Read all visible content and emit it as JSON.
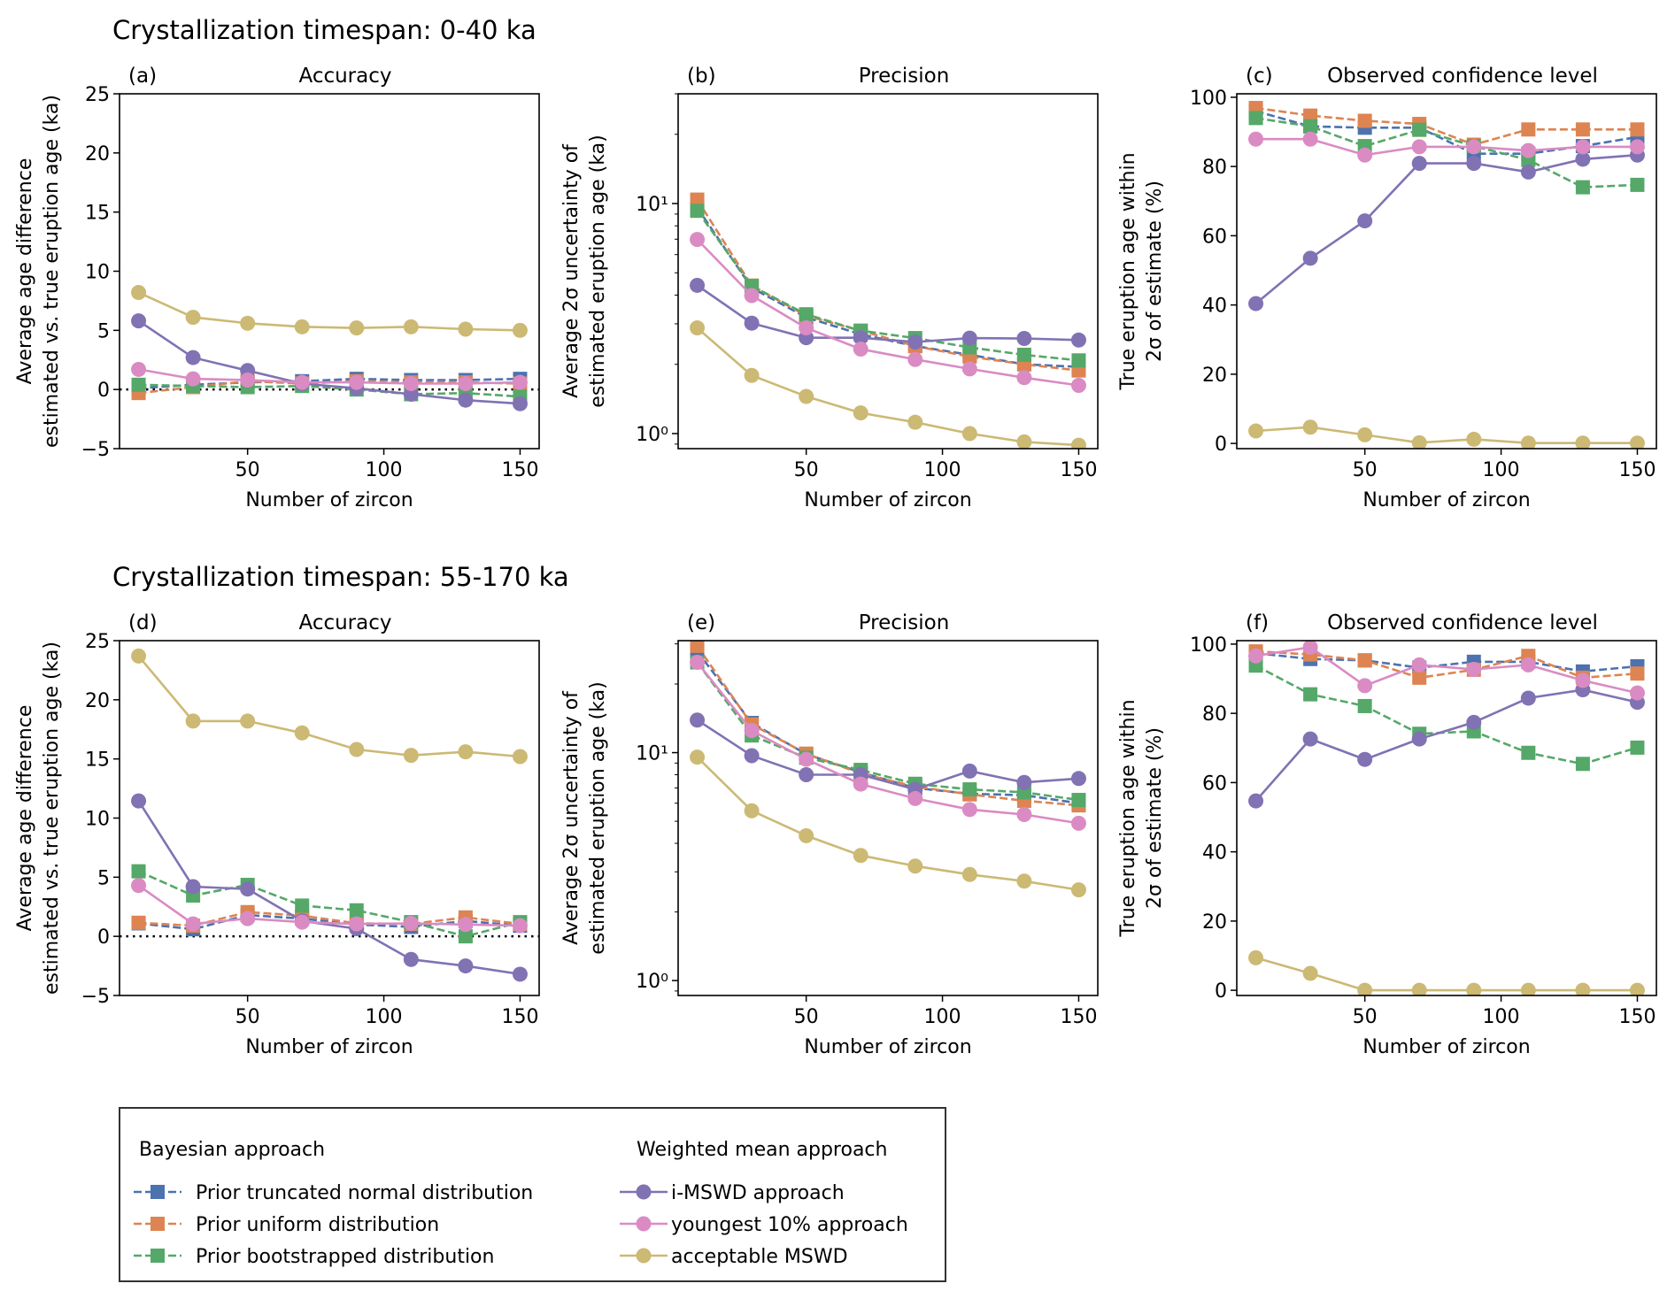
{
  "row_titles": [
    "Crystallization timespan: 0-40 ka",
    "Crystallization timespan: 55-170 ka"
  ],
  "series_styles": [
    {
      "name": "Prior truncated normal distribution",
      "color": "#4c72b0",
      "marker": "square",
      "dashed": true
    },
    {
      "name": "Prior uniform distribution",
      "color": "#dd8452",
      "marker": "square",
      "dashed": true
    },
    {
      "name": "Prior bootstrapped distribution",
      "color": "#55a868",
      "marker": "square",
      "dashed": true
    },
    {
      "name": "i-MSWD approach",
      "color": "#8172b3",
      "marker": "circle",
      "dashed": false
    },
    {
      "name": "youngest 10% approach",
      "color": "#da8bc3",
      "marker": "circle",
      "dashed": false
    },
    {
      "name": "acceptable MSWD",
      "color": "#ccb974",
      "marker": "circle",
      "dashed": false
    }
  ],
  "legend": {
    "group_titles": [
      "Bayesian approach",
      "Weighted mean approach"
    ],
    "entries": [
      "Prior truncated normal distribution",
      "Prior uniform distribution",
      "Prior bootstrapped distribution",
      "i-MSWD approach",
      "youngest 10% approach",
      "acceptable MSWD"
    ]
  },
  "chart_data": [
    {
      "type": "line",
      "panel": "(a)",
      "title": "Accuracy",
      "xlabel": "Number of zircon",
      "ylabel": [
        "Average age difference",
        "estimated vs. true eruption age (ka)"
      ],
      "x": [
        10,
        30,
        50,
        70,
        90,
        110,
        130,
        150
      ],
      "xlim": [
        3,
        157
      ],
      "xticks": [
        50,
        100,
        150
      ],
      "xticklabels": [
        "50",
        "100",
        "150"
      ],
      "yscale": "linear",
      "ylim": [
        -5,
        25
      ],
      "yticks": [
        -5,
        0,
        5,
        10,
        15,
        20,
        25
      ],
      "yticklabels": [
        "−5",
        "0",
        "5",
        "10",
        "15",
        "20",
        "25"
      ],
      "zero_line": true,
      "series": [
        {
          "name": "Prior truncated normal distribution",
          "values": [
            0.1,
            0.4,
            0.6,
            0.7,
            0.9,
            0.8,
            0.8,
            0.9
          ]
        },
        {
          "name": "Prior uniform distribution",
          "values": [
            -0.3,
            0.2,
            0.7,
            0.5,
            0.7,
            0.6,
            0.6,
            0.5
          ]
        },
        {
          "name": "Prior bootstrapped distribution",
          "values": [
            0.4,
            0.3,
            0.2,
            0.3,
            0.0,
            -0.4,
            -0.3,
            -0.6
          ]
        },
        {
          "name": "i-MSWD approach",
          "values": [
            5.8,
            2.7,
            1.6,
            0.5,
            0.1,
            -0.4,
            -0.9,
            -1.2
          ]
        },
        {
          "name": "youngest 10% approach",
          "values": [
            1.7,
            0.9,
            0.8,
            0.6,
            0.6,
            0.5,
            0.5,
            0.6
          ]
        },
        {
          "name": "acceptable MSWD",
          "values": [
            8.2,
            6.1,
            5.6,
            5.3,
            5.2,
            5.3,
            5.1,
            5.0
          ]
        }
      ]
    },
    {
      "type": "line",
      "panel": "(b)",
      "title": "Precision",
      "xlabel": "Number of zircon",
      "ylabel": [
        "Average 2σ uncertainty of",
        "estimated eruption age (ka)"
      ],
      "x": [
        10,
        30,
        50,
        70,
        90,
        110,
        130,
        150
      ],
      "xlim": [
        3,
        157
      ],
      "xticks": [
        50,
        100,
        150
      ],
      "xticklabels": [
        "50",
        "100",
        "150"
      ],
      "yscale": "log",
      "ylim": [
        0.86,
        30
      ],
      "yticks": [
        1,
        10
      ],
      "yticklabels": [
        "10⁰",
        "10¹"
      ],
      "zero_line": false,
      "series": [
        {
          "name": "Prior truncated normal distribution",
          "values": [
            9.6,
            4.3,
            3.2,
            2.7,
            2.4,
            2.2,
            2.0,
            1.95
          ]
        },
        {
          "name": "Prior uniform distribution",
          "values": [
            10.4,
            4.4,
            3.25,
            2.8,
            2.4,
            2.16,
            2.0,
            1.88
          ]
        },
        {
          "name": "Prior bootstrapped distribution",
          "values": [
            9.3,
            4.38,
            3.3,
            2.8,
            2.6,
            2.37,
            2.2,
            2.08
          ]
        },
        {
          "name": "i-MSWD approach",
          "values": [
            4.41,
            3.02,
            2.61,
            2.61,
            2.5,
            2.6,
            2.59,
            2.55
          ]
        },
        {
          "name": "youngest 10% approach",
          "values": [
            6.98,
            3.98,
            2.88,
            2.33,
            2.1,
            1.91,
            1.75,
            1.62
          ]
        },
        {
          "name": "acceptable MSWD",
          "values": [
            2.88,
            1.79,
            1.45,
            1.23,
            1.12,
            1.0,
            0.92,
            0.89
          ]
        }
      ]
    },
    {
      "type": "line",
      "panel": "(c)",
      "title": "Observed confidence level",
      "xlabel": "Number of zircon",
      "ylabel": [
        "True eruption age within",
        "2σ of estimate (%)"
      ],
      "x": [
        10,
        30,
        50,
        70,
        90,
        110,
        130,
        150
      ],
      "xlim": [
        3,
        157
      ],
      "xticks": [
        50,
        100,
        150
      ],
      "xticklabels": [
        "50",
        "100",
        "150"
      ],
      "yscale": "linear",
      "ylim": [
        -1.5,
        101
      ],
      "yticks": [
        0,
        20,
        40,
        60,
        80,
        100
      ],
      "yticklabels": [
        "0",
        "20",
        "40",
        "60",
        "80",
        "100"
      ],
      "zero_line": false,
      "series": [
        {
          "name": "Prior truncated normal distribution",
          "values": [
            96.0,
            91.6,
            91.2,
            91.2,
            83.7,
            83.7,
            85.9,
            88.5
          ]
        },
        {
          "name": "Prior uniform distribution",
          "values": [
            96.9,
            94.7,
            93.2,
            92.3,
            86.3,
            90.7,
            90.7,
            90.7
          ]
        },
        {
          "name": "Prior bootstrapped distribution",
          "values": [
            94.0,
            91.6,
            85.9,
            90.6,
            85.9,
            81.9,
            74.0,
            74.7
          ]
        },
        {
          "name": "i-MSWD approach",
          "values": [
            40.4,
            53.5,
            64.3,
            80.9,
            80.9,
            78.4,
            82.1,
            83.3
          ]
        },
        {
          "name": "youngest 10% approach",
          "values": [
            87.9,
            87.9,
            83.3,
            85.7,
            85.7,
            84.6,
            85.7,
            85.7
          ]
        },
        {
          "name": "acceptable MSWD",
          "values": [
            3.6,
            4.7,
            2.5,
            0.2,
            1.2,
            0.1,
            0.1,
            0.1
          ]
        }
      ]
    },
    {
      "type": "line",
      "panel": "(d)",
      "title": "Accuracy",
      "xlabel": "Number of zircon",
      "ylabel": [
        "Average age difference",
        "estimated vs. true eruption age (ka)"
      ],
      "x": [
        10,
        30,
        50,
        70,
        90,
        110,
        130,
        150
      ],
      "xlim": [
        3,
        157
      ],
      "xticks": [
        50,
        100,
        150
      ],
      "xticklabels": [
        "50",
        "100",
        "150"
      ],
      "yscale": "linear",
      "ylim": [
        -5,
        25
      ],
      "yticks": [
        -5,
        0,
        5,
        10,
        15,
        20,
        25
      ],
      "yticklabels": [
        "−5",
        "0",
        "5",
        "10",
        "15",
        "20",
        "25"
      ],
      "zero_line": true,
      "series": [
        {
          "name": "Prior truncated normal distribution",
          "values": [
            1.1,
            0.6,
            1.8,
            1.5,
            1.0,
            0.8,
            1.3,
            0.9
          ]
        },
        {
          "name": "Prior uniform distribution",
          "values": [
            1.15,
            0.9,
            2.05,
            1.75,
            1.1,
            1.05,
            1.6,
            1.05
          ]
        },
        {
          "name": "Prior bootstrapped distribution",
          "values": [
            5.5,
            3.45,
            4.35,
            2.6,
            2.2,
            1.2,
            0.0,
            1.2
          ]
        },
        {
          "name": "i-MSWD approach",
          "values": [
            11.45,
            4.2,
            4.0,
            1.3,
            0.65,
            -1.95,
            -2.5,
            -3.2
          ]
        },
        {
          "name": "youngest 10% approach",
          "values": [
            4.3,
            1.05,
            1.5,
            1.2,
            1.05,
            1.1,
            1.0,
            0.9
          ]
        },
        {
          "name": "acceptable MSWD",
          "values": [
            23.7,
            18.2,
            18.2,
            17.2,
            15.8,
            15.3,
            15.6,
            15.2
          ]
        }
      ]
    },
    {
      "type": "line",
      "panel": "(e)",
      "title": "Precision",
      "xlabel": "Number of zircon",
      "ylabel": [
        "Average 2σ uncertainty of",
        "estimated eruption age (ka)"
      ],
      "x": [
        10,
        30,
        50,
        70,
        90,
        110,
        130,
        150
      ],
      "xlim": [
        3,
        157
      ],
      "xticks": [
        50,
        100,
        150
      ],
      "xticklabels": [
        "50",
        "100",
        "150"
      ],
      "yscale": "log",
      "ylim": [
        0.86,
        31
      ],
      "yticks": [
        1,
        10
      ],
      "yticklabels": [
        "10⁰",
        "10¹"
      ],
      "zero_line": false,
      "series": [
        {
          "name": "Prior truncated normal distribution",
          "values": [
            27.8,
            13.5,
            9.85,
            8.2,
            7.0,
            6.6,
            6.5,
            6.0
          ]
        },
        {
          "name": "Prior uniform distribution",
          "values": [
            29.4,
            13.3,
            9.9,
            8.1,
            7.1,
            6.56,
            6.15,
            5.87
          ]
        },
        {
          "name": "Prior bootstrapped distribution",
          "values": [
            24.9,
            11.9,
            9.5,
            8.4,
            7.3,
            6.9,
            6.7,
            6.2
          ]
        },
        {
          "name": "i-MSWD approach",
          "values": [
            13.9,
            9.7,
            8.0,
            8.0,
            6.9,
            8.3,
            7.4,
            7.7
          ]
        },
        {
          "name": "youngest 10% approach",
          "values": [
            24.9,
            12.5,
            9.35,
            7.28,
            6.29,
            5.63,
            5.35,
            4.9
          ]
        },
        {
          "name": "acceptable MSWD",
          "values": [
            9.56,
            5.56,
            4.32,
            3.54,
            3.18,
            2.92,
            2.73,
            2.5
          ]
        }
      ]
    },
    {
      "type": "line",
      "panel": "(f)",
      "title": "Observed confidence level",
      "xlabel": "Number of zircon",
      "ylabel": [
        "True eruption age within",
        "2σ of estimate (%)"
      ],
      "x": [
        10,
        30,
        50,
        70,
        90,
        110,
        130,
        150
      ],
      "xlim": [
        3,
        157
      ],
      "xticks": [
        50,
        100,
        150
      ],
      "xticklabels": [
        "50",
        "100",
        "150"
      ],
      "yscale": "linear",
      "ylim": [
        -1.5,
        101
      ],
      "yticks": [
        0,
        20,
        40,
        60,
        80,
        100
      ],
      "yticklabels": [
        "0",
        "20",
        "40",
        "60",
        "80",
        "100"
      ],
      "zero_line": false,
      "series": [
        {
          "name": "Prior truncated normal distribution",
          "values": [
            97.4,
            95.7,
            95.3,
            93.2,
            94.9,
            94.9,
            92.1,
            93.6
          ]
        },
        {
          "name": "Prior uniform distribution",
          "values": [
            97.9,
            97.0,
            95.3,
            90.3,
            92.6,
            96.6,
            90.3,
            91.5
          ]
        },
        {
          "name": "Prior bootstrapped distribution",
          "values": [
            93.8,
            85.5,
            82.1,
            74.1,
            74.8,
            68.6,
            65.4,
            70.1
          ]
        },
        {
          "name": "i-MSWD approach",
          "values": [
            54.7,
            72.6,
            66.7,
            72.6,
            77.4,
            84.4,
            86.8,
            83.2
          ]
        },
        {
          "name": "youngest 10% approach",
          "values": [
            96.6,
            99.1,
            88.0,
            94.0,
            92.7,
            94.0,
            89.5,
            85.9
          ]
        },
        {
          "name": "acceptable MSWD",
          "values": [
            9.4,
            4.9,
            0.0,
            0.0,
            0.0,
            0.0,
            0.0,
            0.0
          ]
        }
      ]
    }
  ]
}
